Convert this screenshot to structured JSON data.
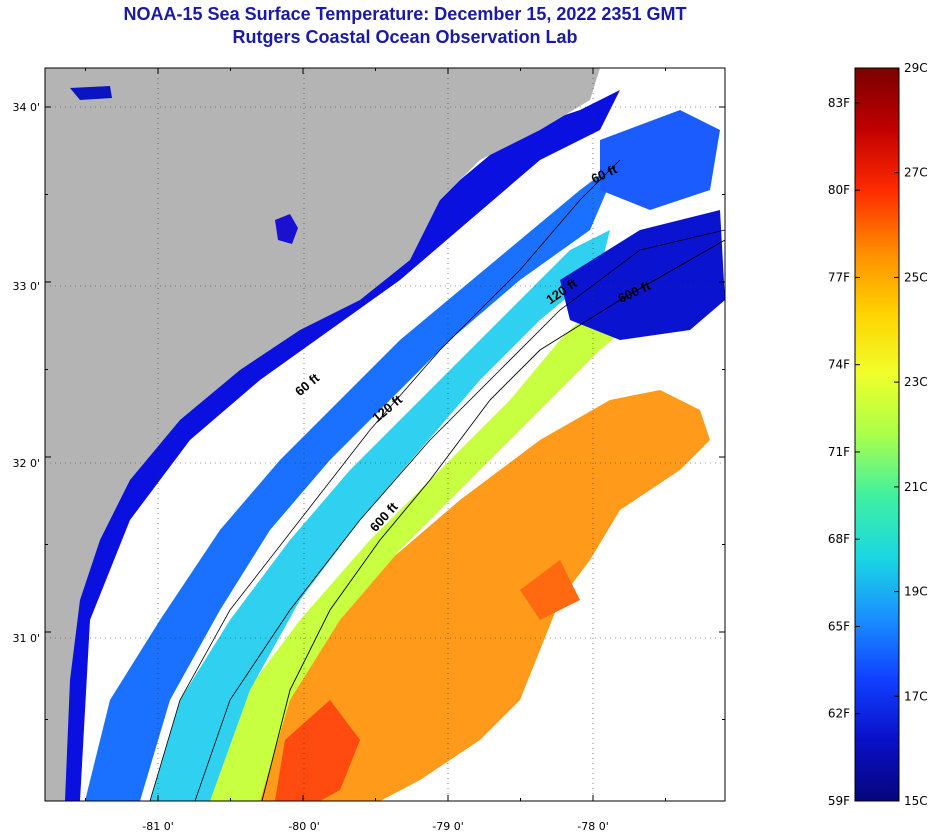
{
  "header": {
    "title": "NOAA-15 Sea Surface Temperature:  December 15, 2022 2351 GMT",
    "subtitle": "Rutgers Coastal Ocean Observation Lab"
  },
  "map": {
    "longitude_ticks": [
      "-81 0'",
      "-80 0'",
      "-79 0'",
      "-78 0'"
    ],
    "latitude_ticks": [
      "34 0'",
      "33 0'",
      "32 0'",
      "31 0'"
    ],
    "contour_labels": [
      "600 ft",
      "120 ft",
      "60 ft",
      "120 ft",
      "600 ft",
      "60 ft"
    ],
    "colors": {
      "land": "#b4b4b4",
      "no_data": "#ffffff"
    }
  },
  "colorbar": {
    "celsius_labels": [
      "29C",
      "27C",
      "25C",
      "23C",
      "21C",
      "19C",
      "17C",
      "15C"
    ],
    "fahrenheit_labels": [
      "83F",
      "80F",
      "77F",
      "74F",
      "71F",
      "68F",
      "65F",
      "62F",
      "59F"
    ],
    "gradient_colors": [
      "#7b0000",
      "#c00000",
      "#ff2a00",
      "#ff8c00",
      "#ffd200",
      "#f0ff2a",
      "#aaff4a",
      "#40f0a0",
      "#1ad8e0",
      "#1a90ff",
      "#1040ff",
      "#0a10c8",
      "#06067a"
    ]
  }
}
